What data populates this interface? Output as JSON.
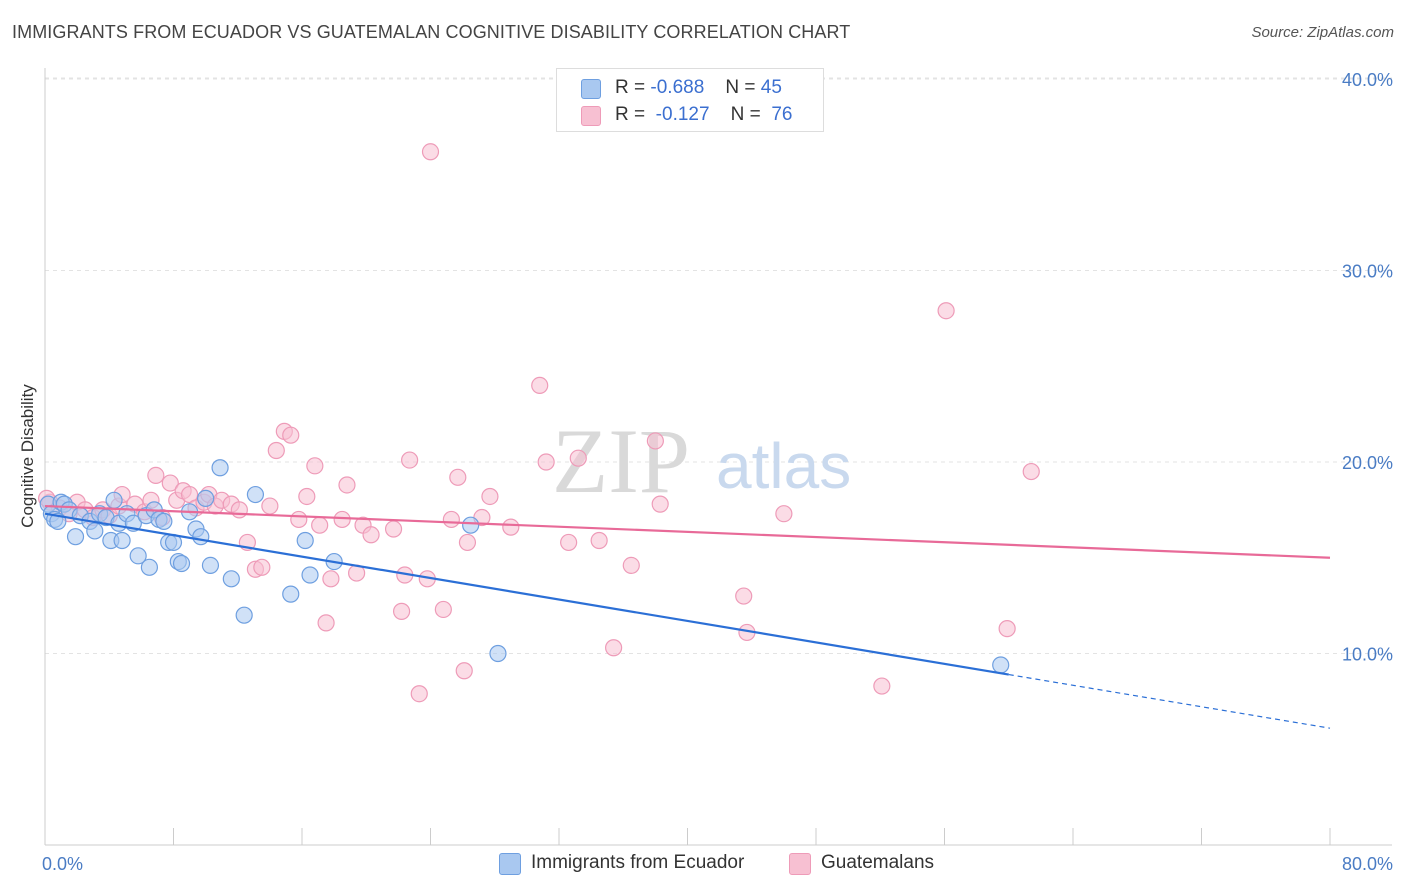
{
  "title": "IMMIGRANTS FROM ECUADOR VS GUATEMALAN COGNITIVE DISABILITY CORRELATION CHART",
  "source": "Source: ZipAtlas.com",
  "watermark": {
    "zip": "ZIP",
    "atlas": "atlas"
  },
  "legend": {
    "r_label": "R =",
    "n_label": "N =",
    "rows": [
      {
        "r": "-0.688",
        "n": "45"
      },
      {
        "r": "-0.127",
        "n": "76"
      }
    ]
  },
  "bottom_legend": [
    "Immigrants from Ecuador",
    "Guatemalans"
  ],
  "colors": {
    "ecuador_fill": "#a9c8f0",
    "ecuador_stroke": "#6e9fe0",
    "ecuador_line": "#2b6fd6",
    "guatemalan_fill": "#f7c0d2",
    "guatemalan_stroke": "#ee9bb8",
    "guatemalan_line": "#e86a98",
    "tick": "#4a7cc4",
    "grid": "#e3e3e3"
  },
  "chart_data": {
    "type": "scatter",
    "title": "IMMIGRANTS FROM ECUADOR VS GUATEMALAN COGNITIVE DISABILITY CORRELATION CHART",
    "xlabel": "",
    "ylabel": "Cognitive Disability",
    "xlim": [
      0,
      80
    ],
    "ylim": [
      0,
      42
    ],
    "x_tick_labels": [
      "0.0%",
      "80.0%"
    ],
    "y_ticks": [
      10,
      20,
      30,
      40
    ],
    "y_tick_labels": [
      "10.0%",
      "20.0%",
      "30.0%",
      "40.0%"
    ],
    "grid": "horizontal dashed",
    "legend_position": "top-center",
    "series": [
      {
        "name": "Immigrants from Ecuador",
        "r": -0.688,
        "n": 45,
        "trend": {
          "x_start": 0,
          "y_start": 17.3,
          "x_solid_end": 60,
          "y_solid_end": 8.9,
          "x_end": 80,
          "y_end": 6.1
        },
        "points": [
          [
            0.2,
            17.8
          ],
          [
            0.4,
            17.3
          ],
          [
            0.6,
            17.0
          ],
          [
            0.8,
            16.9
          ],
          [
            1.0,
            17.9
          ],
          [
            1.2,
            17.8
          ],
          [
            1.5,
            17.5
          ],
          [
            1.9,
            16.1
          ],
          [
            2.2,
            17.2
          ],
          [
            2.8,
            16.9
          ],
          [
            3.1,
            16.4
          ],
          [
            3.4,
            17.3
          ],
          [
            3.8,
            17.1
          ],
          [
            4.1,
            15.9
          ],
          [
            4.3,
            18.0
          ],
          [
            4.6,
            16.8
          ],
          [
            4.8,
            15.9
          ],
          [
            5.1,
            17.3
          ],
          [
            5.5,
            16.8
          ],
          [
            5.8,
            15.1
          ],
          [
            6.3,
            17.2
          ],
          [
            6.5,
            14.5
          ],
          [
            6.8,
            17.5
          ],
          [
            7.1,
            17.0
          ],
          [
            7.4,
            16.9
          ],
          [
            7.7,
            15.8
          ],
          [
            8.0,
            15.8
          ],
          [
            8.3,
            14.8
          ],
          [
            8.5,
            14.7
          ],
          [
            9.0,
            17.4
          ],
          [
            9.4,
            16.5
          ],
          [
            9.7,
            16.1
          ],
          [
            10.0,
            18.1
          ],
          [
            10.3,
            14.6
          ],
          [
            10.9,
            19.7
          ],
          [
            11.6,
            13.9
          ],
          [
            12.4,
            12.0
          ],
          [
            13.1,
            18.3
          ],
          [
            15.3,
            13.1
          ],
          [
            16.2,
            15.9
          ],
          [
            16.5,
            14.1
          ],
          [
            18.0,
            14.8
          ],
          [
            26.5,
            16.7
          ],
          [
            28.2,
            10.0
          ],
          [
            59.5,
            9.4
          ]
        ]
      },
      {
        "name": "Guatemalans",
        "r": -0.127,
        "n": 76,
        "trend": {
          "x_start": 0,
          "y_start": 17.7,
          "x_end": 80,
          "y_end": 15.0
        },
        "points": [
          [
            0.3,
            17.9
          ],
          [
            0.9,
            17.6
          ],
          [
            1.5,
            17.3
          ],
          [
            2.0,
            17.9
          ],
          [
            2.5,
            17.5
          ],
          [
            3.0,
            17.1
          ],
          [
            3.6,
            17.5
          ],
          [
            4.0,
            17.2
          ],
          [
            4.6,
            17.7
          ],
          [
            4.8,
            18.3
          ],
          [
            5.6,
            17.8
          ],
          [
            6.2,
            17.4
          ],
          [
            6.6,
            18.0
          ],
          [
            6.9,
            19.3
          ],
          [
            7.3,
            17.1
          ],
          [
            7.8,
            18.9
          ],
          [
            8.2,
            18.0
          ],
          [
            8.6,
            18.5
          ],
          [
            9.0,
            18.3
          ],
          [
            9.4,
            17.6
          ],
          [
            9.9,
            17.9
          ],
          [
            10.2,
            18.3
          ],
          [
            10.6,
            17.7
          ],
          [
            11.0,
            18.0
          ],
          [
            11.6,
            17.8
          ],
          [
            12.1,
            17.5
          ],
          [
            12.6,
            15.8
          ],
          [
            13.1,
            14.4
          ],
          [
            13.5,
            14.5
          ],
          [
            14.0,
            17.7
          ],
          [
            14.4,
            20.6
          ],
          [
            14.9,
            21.6
          ],
          [
            15.3,
            21.4
          ],
          [
            15.8,
            17.0
          ],
          [
            16.3,
            18.2
          ],
          [
            16.8,
            19.8
          ],
          [
            17.1,
            16.7
          ],
          [
            17.5,
            11.6
          ],
          [
            17.8,
            13.9
          ],
          [
            18.5,
            17.0
          ],
          [
            18.8,
            18.8
          ],
          [
            19.4,
            14.2
          ],
          [
            19.8,
            16.7
          ],
          [
            20.3,
            16.2
          ],
          [
            21.7,
            16.5
          ],
          [
            22.2,
            12.2
          ],
          [
            22.4,
            14.1
          ],
          [
            22.7,
            20.1
          ],
          [
            23.3,
            7.9
          ],
          [
            23.8,
            13.9
          ],
          [
            24.0,
            36.2
          ],
          [
            24.8,
            12.3
          ],
          [
            25.3,
            17.0
          ],
          [
            25.7,
            19.2
          ],
          [
            26.1,
            9.1
          ],
          [
            26.3,
            15.8
          ],
          [
            27.2,
            17.1
          ],
          [
            27.7,
            18.2
          ],
          [
            29.0,
            16.6
          ],
          [
            30.8,
            24.0
          ],
          [
            31.2,
            20.0
          ],
          [
            32.6,
            15.8
          ],
          [
            33.2,
            20.2
          ],
          [
            34.5,
            15.9
          ],
          [
            35.4,
            10.3
          ],
          [
            36.5,
            14.6
          ],
          [
            38.0,
            21.1
          ],
          [
            38.3,
            17.8
          ],
          [
            43.5,
            13.0
          ],
          [
            43.7,
            11.1
          ],
          [
            46.0,
            17.3
          ],
          [
            52.1,
            8.3
          ],
          [
            56.1,
            27.9
          ],
          [
            59.9,
            11.3
          ],
          [
            61.4,
            19.5
          ],
          [
            0.1,
            18.1
          ]
        ]
      }
    ]
  }
}
